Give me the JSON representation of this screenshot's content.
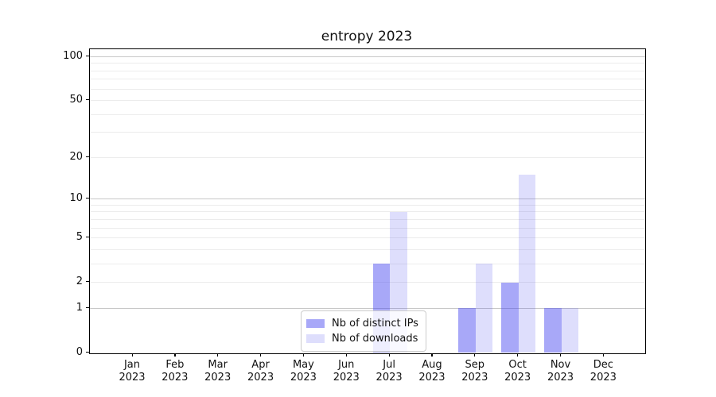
{
  "title": "entropy 2023",
  "chart_data": {
    "type": "bar",
    "title": "entropy 2023",
    "categories": [
      "Jan 2023",
      "Feb 2023",
      "Mar 2023",
      "Apr 2023",
      "May 2023",
      "Jun 2023",
      "Jul 2023",
      "Aug 2023",
      "Sep 2023",
      "Oct 2023",
      "Nov 2023",
      "Dec 2023"
    ],
    "series": [
      {
        "name": "Nb of distinct IPs",
        "color": "rgba(70,70,240,0.47)",
        "values": [
          0,
          0,
          0,
          0,
          0,
          0,
          3,
          0,
          1,
          2,
          1,
          0
        ]
      },
      {
        "name": "Nb of downloads",
        "color": "rgba(70,70,240,0.18)",
        "values": [
          0,
          0,
          0,
          0,
          0,
          0,
          8,
          0,
          3,
          15,
          1,
          0
        ]
      }
    ],
    "y_scale": "log1p",
    "ylim": [
      0,
      111
    ],
    "y_tick_labels": [
      100,
      50,
      20,
      10,
      5,
      2,
      1,
      0
    ],
    "y_major_gridlines": [
      1,
      10,
      100
    ],
    "y_minor_gridlines": [
      2,
      3,
      4,
      5,
      6,
      7,
      8,
      9,
      20,
      30,
      40,
      50,
      60,
      70,
      80,
      90
    ],
    "grid": true,
    "legend_position": "lower center"
  },
  "colors": {
    "grid_major": "#c8c8c8",
    "grid_minor": "#ececec",
    "spine": "#000000",
    "background": "#ffffff"
  }
}
